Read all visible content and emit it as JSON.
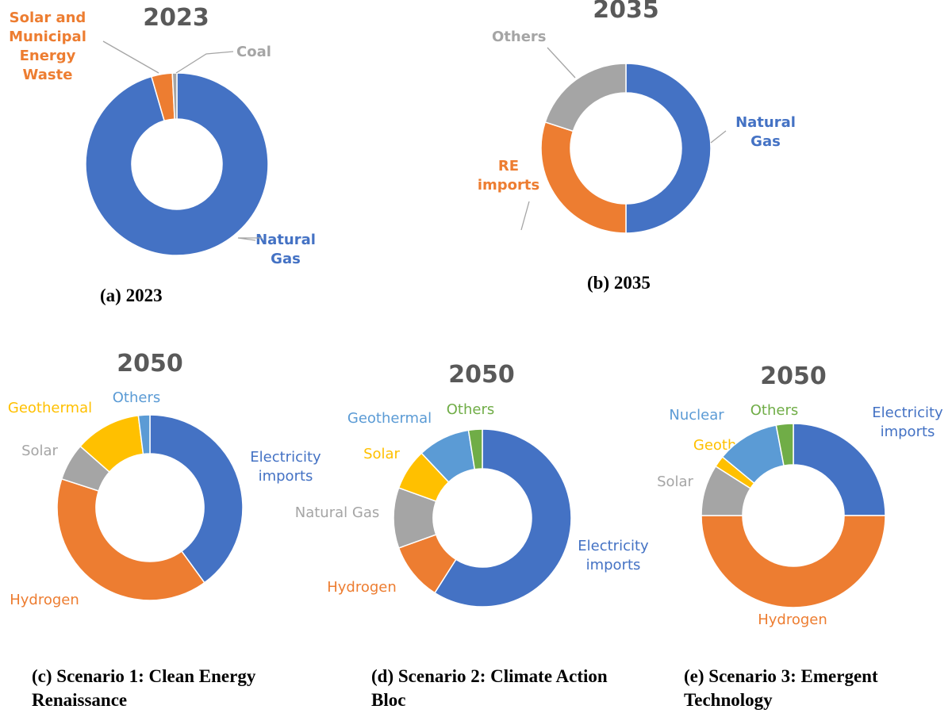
{
  "chart_data": [
    {
      "type": "pie",
      "donut": true,
      "title": "2023",
      "caption": "(a) 2023",
      "slices": [
        {
          "label": "Natural Gas",
          "value": 95.5,
          "color": "#4472C4"
        },
        {
          "label": "Solar and Municipal Energy Waste",
          "value": 3.7,
          "color": "#ED7D31"
        },
        {
          "label": "Coal",
          "value": 0.8,
          "color": "#A5A5A5"
        }
      ]
    },
    {
      "type": "pie",
      "donut": true,
      "title": "2035",
      "caption": "(b) 2035",
      "slices": [
        {
          "label": "Natural Gas",
          "value": 50,
          "color": "#4472C4"
        },
        {
          "label": "RE imports",
          "value": 30,
          "color": "#ED7D31"
        },
        {
          "label": "Others",
          "value": 20,
          "color": "#A5A5A5"
        }
      ]
    },
    {
      "type": "pie",
      "donut": true,
      "title": "2050",
      "caption": "(c) Scenario 1: Clean Energy Renaissance",
      "slices": [
        {
          "label": "Electricity imports",
          "value": 40,
          "color": "#4472C4"
        },
        {
          "label": "Hydrogen",
          "value": 40,
          "color": "#ED7D31"
        },
        {
          "label": "Solar",
          "value": 6.5,
          "color": "#A5A5A5"
        },
        {
          "label": "Geothermal",
          "value": 11.5,
          "color": "#FFC000"
        },
        {
          "label": "Others",
          "value": 2,
          "color": "#5B9BD5"
        }
      ]
    },
    {
      "type": "pie",
      "donut": true,
      "title": "2050",
      "caption": "(d) Scenario 2: Climate Action Bloc",
      "slices": [
        {
          "label": "Electricity imports",
          "value": 59,
          "color": "#4472C4"
        },
        {
          "label": "Hydrogen",
          "value": 10.5,
          "color": "#ED7D31"
        },
        {
          "label": "Natural Gas",
          "value": 11,
          "color": "#A5A5A5"
        },
        {
          "label": "Solar",
          "value": 7.5,
          "color": "#FFC000"
        },
        {
          "label": "Geothermal",
          "value": 9.5,
          "color": "#5B9BD5"
        },
        {
          "label": "Others",
          "value": 2.5,
          "color": "#70AD47"
        }
      ]
    },
    {
      "type": "pie",
      "donut": true,
      "title": "2050",
      "caption": "(e) Scenario 3: Emergent Technology",
      "slices": [
        {
          "label": "Electricity imports",
          "value": 25,
          "color": "#4472C4"
        },
        {
          "label": "Hydrogen",
          "value": 50,
          "color": "#ED7D31"
        },
        {
          "label": "Solar",
          "value": 9,
          "color": "#A5A5A5"
        },
        {
          "label": "Geothermal",
          "value": 2,
          "color": "#FFC000"
        },
        {
          "label": "Nuclear",
          "value": 11,
          "color": "#5B9BD5"
        },
        {
          "label": "Others",
          "value": 3,
          "color": "#70AD47"
        }
      ]
    }
  ]
}
